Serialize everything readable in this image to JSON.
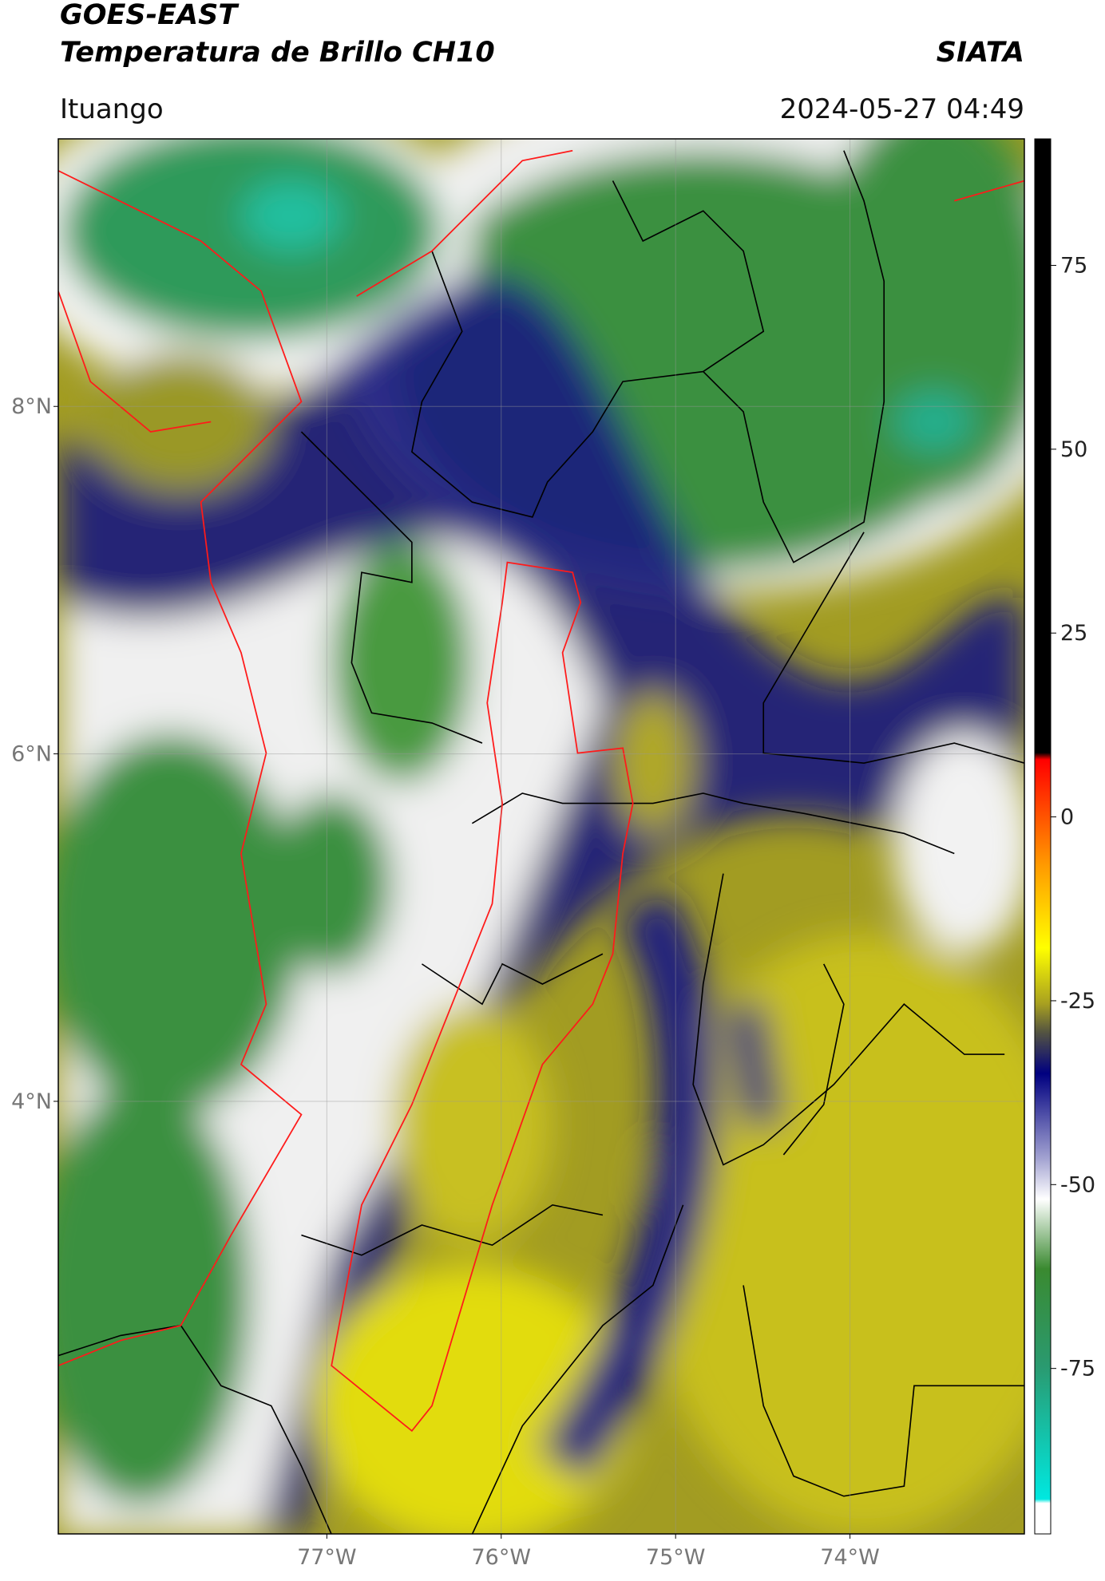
{
  "header": {
    "title_line1": "GOES-EAST",
    "title_line2": "Temperatura de Brillo CH10",
    "source": "SIATA",
    "region": "Ituango",
    "timestamp": "2024-05-27 04:49"
  },
  "map": {
    "lon_range": [
      -78.54,
      -73.0
    ],
    "lat_range": [
      1.51,
      9.54
    ],
    "lat_ticks": [
      {
        "value": 8,
        "label": "8°N"
      },
      {
        "value": 6,
        "label": "6°N"
      },
      {
        "value": 4,
        "label": "4°N"
      }
    ],
    "lon_ticks": [
      {
        "value": -77,
        "label": "77°W"
      },
      {
        "value": -76,
        "label": "76°W"
      },
      {
        "value": -75,
        "label": "75°W"
      },
      {
        "value": -74,
        "label": "74°W"
      }
    ]
  },
  "colorbar": {
    "range": [
      -97.5,
      92.2
    ],
    "ticks": [
      75,
      50,
      25,
      0,
      -25,
      -50,
      -75
    ]
  }
}
